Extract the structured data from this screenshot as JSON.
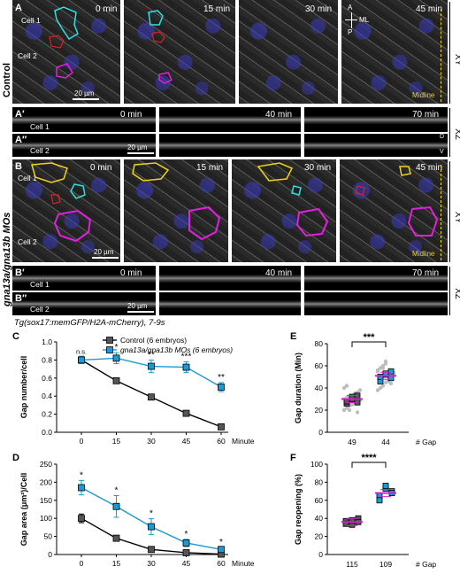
{
  "figure": {
    "rows": {
      "A": {
        "label": "A",
        "panels": [
          "0 min",
          "15 min",
          "30 min",
          "45 min"
        ],
        "cell1": "Cell 1",
        "cell2": "Cell 2",
        "scalebar": "20 µm",
        "axis_a": "A",
        "axis_p": "P",
        "axis_ml": "ML",
        "midline": "Midline",
        "side": "XY"
      },
      "A1": {
        "label": "A′",
        "panels": [
          "0 min",
          "40 min",
          "70 min"
        ],
        "cell": "Cell 1"
      },
      "A2": {
        "label": "A″",
        "cell": "Cell 2",
        "scalebar": "20 µm",
        "d": "D",
        "v": "V",
        "side": "XZ"
      },
      "B": {
        "label": "B",
        "panels": [
          "0 min",
          "15 min",
          "30 min",
          "45 min"
        ],
        "cell1": "Cell 1",
        "cell2": "Cell 2",
        "scalebar": "20 µm",
        "midline": "Midline",
        "side": "XY"
      },
      "B1": {
        "label": "B′",
        "panels": [
          "0 min",
          "40 min",
          "70 min"
        ],
        "cell": "Cell 1"
      },
      "B2": {
        "label": "B″",
        "cell": "Cell 2",
        "scalebar": "20 µm",
        "side": "XZ"
      },
      "control_label": "Control",
      "mo_label": "gna13a/gna13b MOs",
      "caption": "Tg(sox17:memGFP/H2A-mCherry), 7-9s"
    },
    "colors": {
      "control": "#555555",
      "mo": "#1a9ad6",
      "mean": "#d21fd2",
      "scatter": "#bdbdbd",
      "yellow": "#f2d21a",
      "cyan": "#2fe0e0",
      "magenta": "#e31ee0",
      "red": "#e02020"
    }
  },
  "chart_data": [
    {
      "panel": "C",
      "type": "line",
      "ylabel": "Gap number/cell",
      "xlabel": "Minute",
      "x": [
        0,
        15,
        30,
        45,
        60
      ],
      "ylim": [
        0,
        1.0
      ],
      "yticks": [
        "0.0",
        "0.2",
        "0.4",
        "0.6",
        "0.8",
        "1.0"
      ],
      "series": [
        {
          "name": "Control (6 embryos)",
          "values": [
            0.8,
            0.57,
            0.39,
            0.21,
            0.06
          ],
          "err": [
            0.04,
            0.01,
            0.02,
            0.01,
            0.01
          ]
        },
        {
          "name": "gna13a/gna13b MOs (6 embryos)",
          "values": [
            0.8,
            0.82,
            0.73,
            0.72,
            0.5
          ],
          "err": [
            0.04,
            0.06,
            0.07,
            0.06,
            0.05
          ]
        }
      ],
      "annotations": [
        "n.s.",
        "*",
        "**",
        "***",
        "**"
      ]
    },
    {
      "panel": "D",
      "type": "line",
      "ylabel": "Gap area (μm²)/Cell",
      "xlabel": "Minute",
      "x": [
        0,
        15,
        30,
        45,
        60
      ],
      "ylim": [
        0,
        250
      ],
      "yticks": [
        "0",
        "50",
        "100",
        "150",
        "200",
        "250"
      ],
      "series": [
        {
          "name": "Control",
          "values": [
            100,
            45,
            14,
            5,
            1
          ],
          "err": [
            12,
            8,
            3,
            2,
            1
          ]
        },
        {
          "name": "gna13a/gna13b MOs",
          "values": [
            185,
            133,
            77,
            32,
            14
          ],
          "err": [
            20,
            30,
            22,
            10,
            5
          ]
        }
      ],
      "annotations": [
        "*",
        "*",
        "*",
        "*",
        "*"
      ]
    },
    {
      "panel": "E",
      "type": "scatter",
      "ylabel": "Gap duration (Min)",
      "ylim": [
        0,
        80
      ],
      "yticks": [
        "0",
        "20",
        "40",
        "60",
        "80"
      ],
      "categories": [
        "49",
        "44"
      ],
      "count_label": "# Gap",
      "means": [
        30,
        51
      ],
      "significance": "***"
    },
    {
      "panel": "F",
      "type": "scatter",
      "ylabel": "Gap reopening (%)",
      "ylim": [
        0,
        100
      ],
      "yticks": [
        "0",
        "20",
        "40",
        "60",
        "80",
        "100"
      ],
      "categories": [
        "115",
        "109"
      ],
      "count_label": "# Gap",
      "values": [
        [
          37,
          33,
          40,
          34,
          38,
          36
        ],
        [
          65,
          73,
          70,
          60,
          76,
          68
        ]
      ],
      "means": [
        36,
        68
      ],
      "significance": "****"
    }
  ]
}
